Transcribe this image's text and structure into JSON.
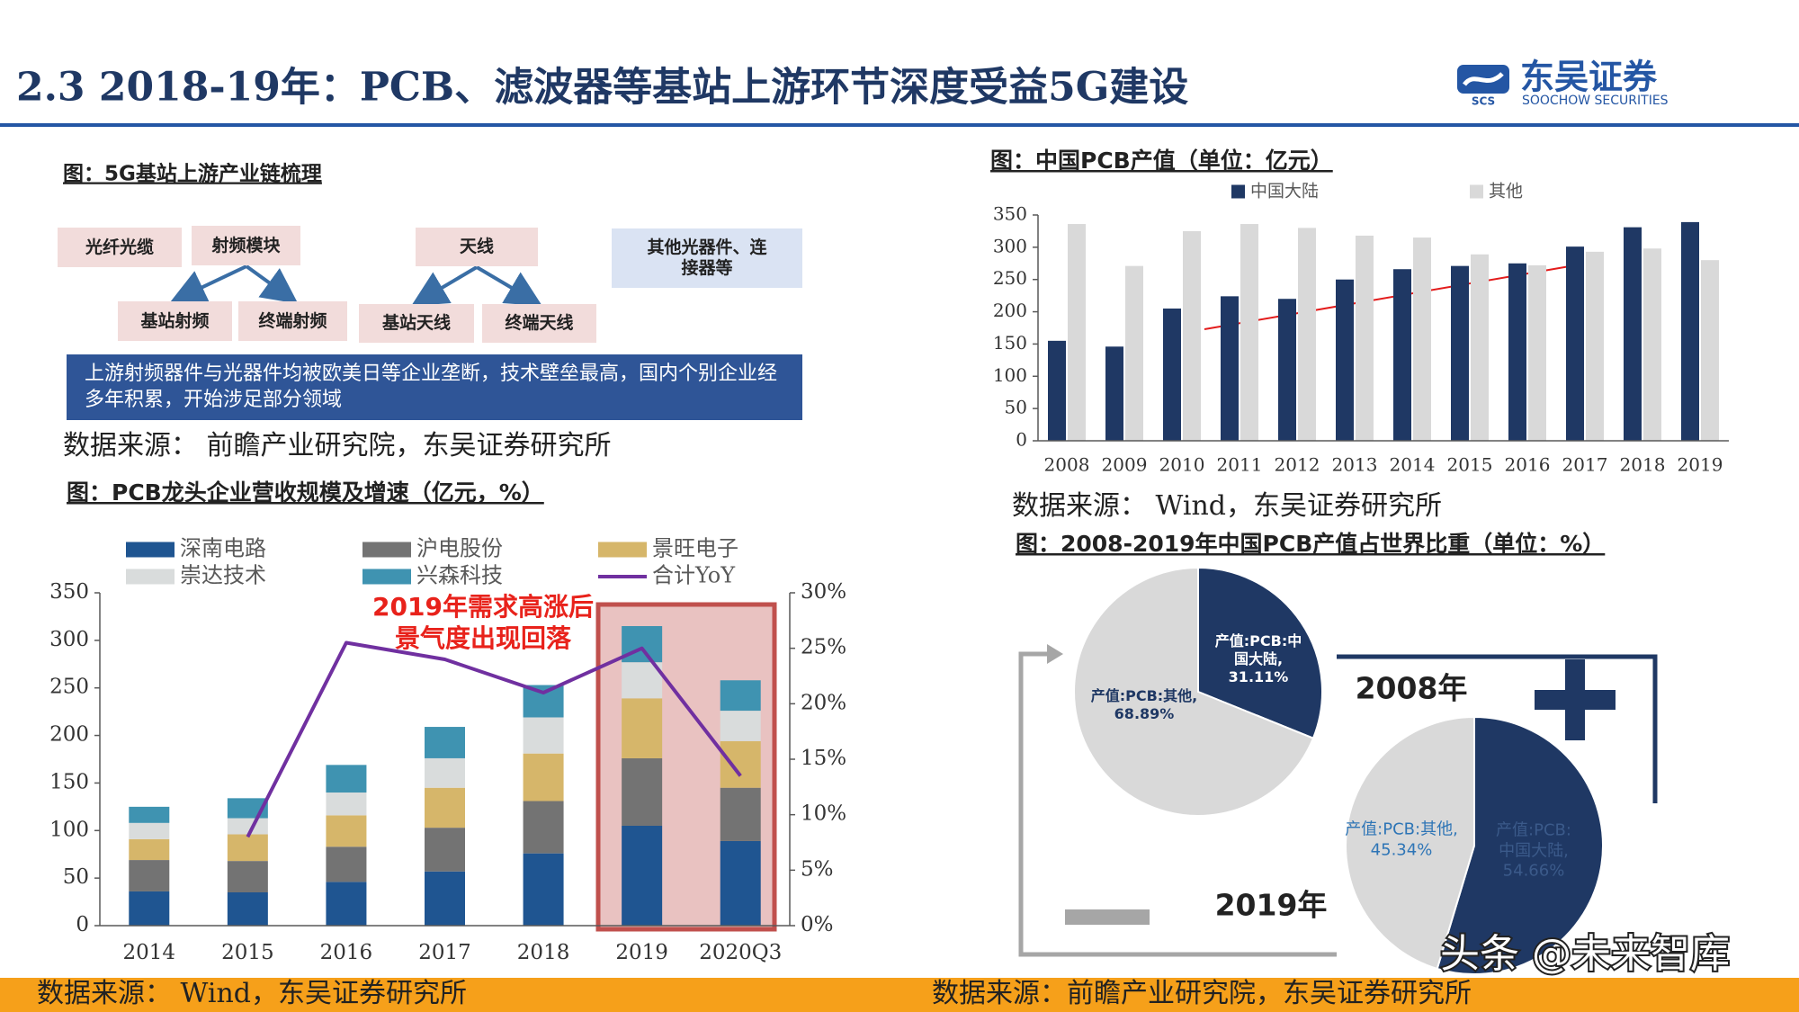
{
  "header": {
    "title": "2.3 2018-19年：PCB、滤波器等基站上游环节深度受益5G建设",
    "logo_mark": "SCS",
    "logo_text": "东吴证券",
    "logo_subtext": "SOOCHOW SECURITIES"
  },
  "diagram": {
    "title": "图：5G基站上游产业链梳理",
    "nodes": [
      "光纤光缆",
      "射频模块",
      "基站射频",
      "终端射频",
      "天线",
      "基站天线",
      "终端天线",
      "其他光器件、连接器等"
    ],
    "note": "上游射频器件与光器件均被欧美日等企业垄断，技术壁垒最高，国内个别企业经多年积累，开始涉足部分领域",
    "source": "数据来源： 前瞻产业研究院，东吴证券研究所"
  },
  "chart_data": [
    {
      "type": "bar",
      "stacked": true,
      "title": "图：PCB龙头企业营收规模及增速（亿元，%）",
      "categories": [
        "2014",
        "2015",
        "2016",
        "2017",
        "2018",
        "2019",
        "2020Q3"
      ],
      "series": [
        {
          "name": "深南电路",
          "color": "#1f5591",
          "values": [
            36,
            35,
            46,
            57,
            76,
            105,
            89
          ]
        },
        {
          "name": "沪电股份",
          "color": "#737373",
          "values": [
            33,
            33,
            37,
            46,
            55,
            71,
            56
          ]
        },
        {
          "name": "景旺电子",
          "color": "#d6b66a",
          "values": [
            22,
            28,
            33,
            42,
            50,
            63,
            49
          ]
        },
        {
          "name": "崇达技术",
          "color": "#d9dcdc",
          "values": [
            17,
            17,
            24,
            31,
            38,
            38,
            32
          ]
        },
        {
          "name": "兴森科技",
          "color": "#3f93b1",
          "values": [
            17,
            21,
            29,
            33,
            34,
            38,
            32
          ]
        },
        {
          "name": "合计YoY",
          "type": "line",
          "axis": "y2",
          "color": "#7030a0",
          "values": [
            null,
            8,
            25.5,
            24,
            21,
            25,
            13.5
          ]
        }
      ],
      "ylim": [
        0,
        350
      ],
      "yticks": [
        0,
        50,
        100,
        150,
        200,
        250,
        300,
        350
      ],
      "y2lim": [
        0,
        30
      ],
      "y2ticks": [
        {
          "value": 0,
          "label": "0%"
        },
        {
          "value": 5,
          "label": "5%"
        },
        {
          "value": 10,
          "label": "10%"
        },
        {
          "value": 15,
          "label": "15%"
        },
        {
          "value": 20,
          "label": "20%"
        },
        {
          "value": 25,
          "label": "25%"
        },
        {
          "value": 30,
          "label": "30%"
        }
      ],
      "annotation": [
        "2019年需求高涨后",
        "景气度出现回落"
      ],
      "source": "数据来源： Wind，东吴证券研究所"
    },
    {
      "type": "bar",
      "stacked": false,
      "title": "图：中国PCB产值（单位：亿元）",
      "categories": [
        "2008",
        "2009",
        "2010",
        "2011",
        "2012",
        "2013",
        "2014",
        "2015",
        "2016",
        "2017",
        "2018",
        "2019"
      ],
      "series": [
        {
          "name": "中国大陆",
          "color": "#1f3864",
          "values": [
            155,
            146,
            205,
            224,
            220,
            250,
            266,
            271,
            275,
            301,
            331,
            339
          ]
        },
        {
          "name": "其他",
          "color": "#d9d9d9",
          "values": [
            336,
            271,
            325,
            336,
            330,
            318,
            315,
            289,
            272,
            293,
            298,
            280
          ]
        }
      ],
      "ylim": [
        0,
        350
      ],
      "yticks": [
        0,
        50,
        100,
        150,
        200,
        250,
        300,
        350
      ],
      "source": "数据来源： Wind，东吴证券研究所"
    },
    {
      "type": "pie",
      "caption": "图：2008-2019年中国PCB产值占世界比重（单位：%）",
      "title": "2008年",
      "values": [
        31.11,
        68.89
      ],
      "value_labels": [
        "产值:PCB:中国大陆, 31.11%",
        "产值:PCB:其他, 68.89%"
      ],
      "colors": [
        "#1f3864",
        "#d9d9d9"
      ],
      "source": "数据来源：前瞻产业研究院，东吴证券研究所"
    },
    {
      "type": "pie",
      "title": "2019年",
      "values": [
        54.66,
        45.34
      ],
      "value_labels": [
        "产值:PCB:中国大陆, 54.66%",
        "产值:PCB:其他, 45.34%"
      ],
      "colors": [
        "#1f3864",
        "#d9d9d9"
      ]
    }
  ],
  "watermark": "头条 @未来智库"
}
